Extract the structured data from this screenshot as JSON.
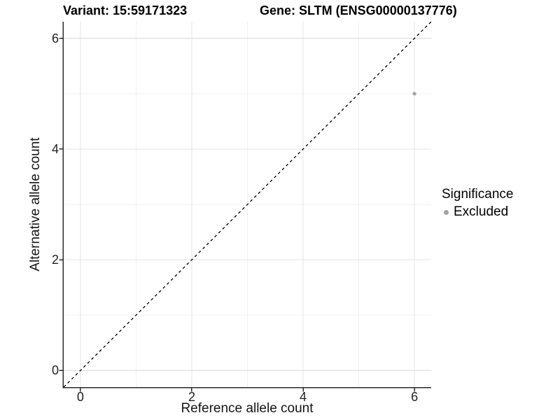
{
  "chart_data": {
    "type": "scatter",
    "title_left": "Variant: 15:59171323",
    "title_right": "Gene: SLTM (ENSG00000137776)",
    "xlabel": "Reference allele count",
    "ylabel": "Alternative allele count",
    "xlim": [
      -0.3,
      6.3
    ],
    "ylim": [
      -0.3,
      6.3
    ],
    "xticks": [
      0,
      2,
      4,
      6
    ],
    "yticks": [
      0,
      2,
      4,
      6
    ],
    "xminor": [
      1,
      3,
      5
    ],
    "yminor": [
      1,
      3,
      5
    ],
    "grid": "major and minor gridlines on white panel",
    "series": [
      {
        "name": "Excluded",
        "color": "#a3a3a3",
        "points": [
          {
            "x": 6,
            "y": 5
          }
        ]
      }
    ],
    "reference_line": {
      "type": "identity y=x",
      "style": "dashed",
      "color": "#000000"
    },
    "legend": {
      "title": "Significance",
      "position": "right",
      "entries": [
        {
          "label": "Excluded",
          "color": "#a3a3a3",
          "marker": "circle"
        }
      ]
    }
  },
  "colors": {
    "grid_major": "#e4e4e4",
    "grid_minor": "#f1f1f1",
    "axis_line": "#2b2b2b",
    "tick_text": "#1f1f1f",
    "point": "#a3a3a3",
    "dashed_line": "#000000"
  }
}
